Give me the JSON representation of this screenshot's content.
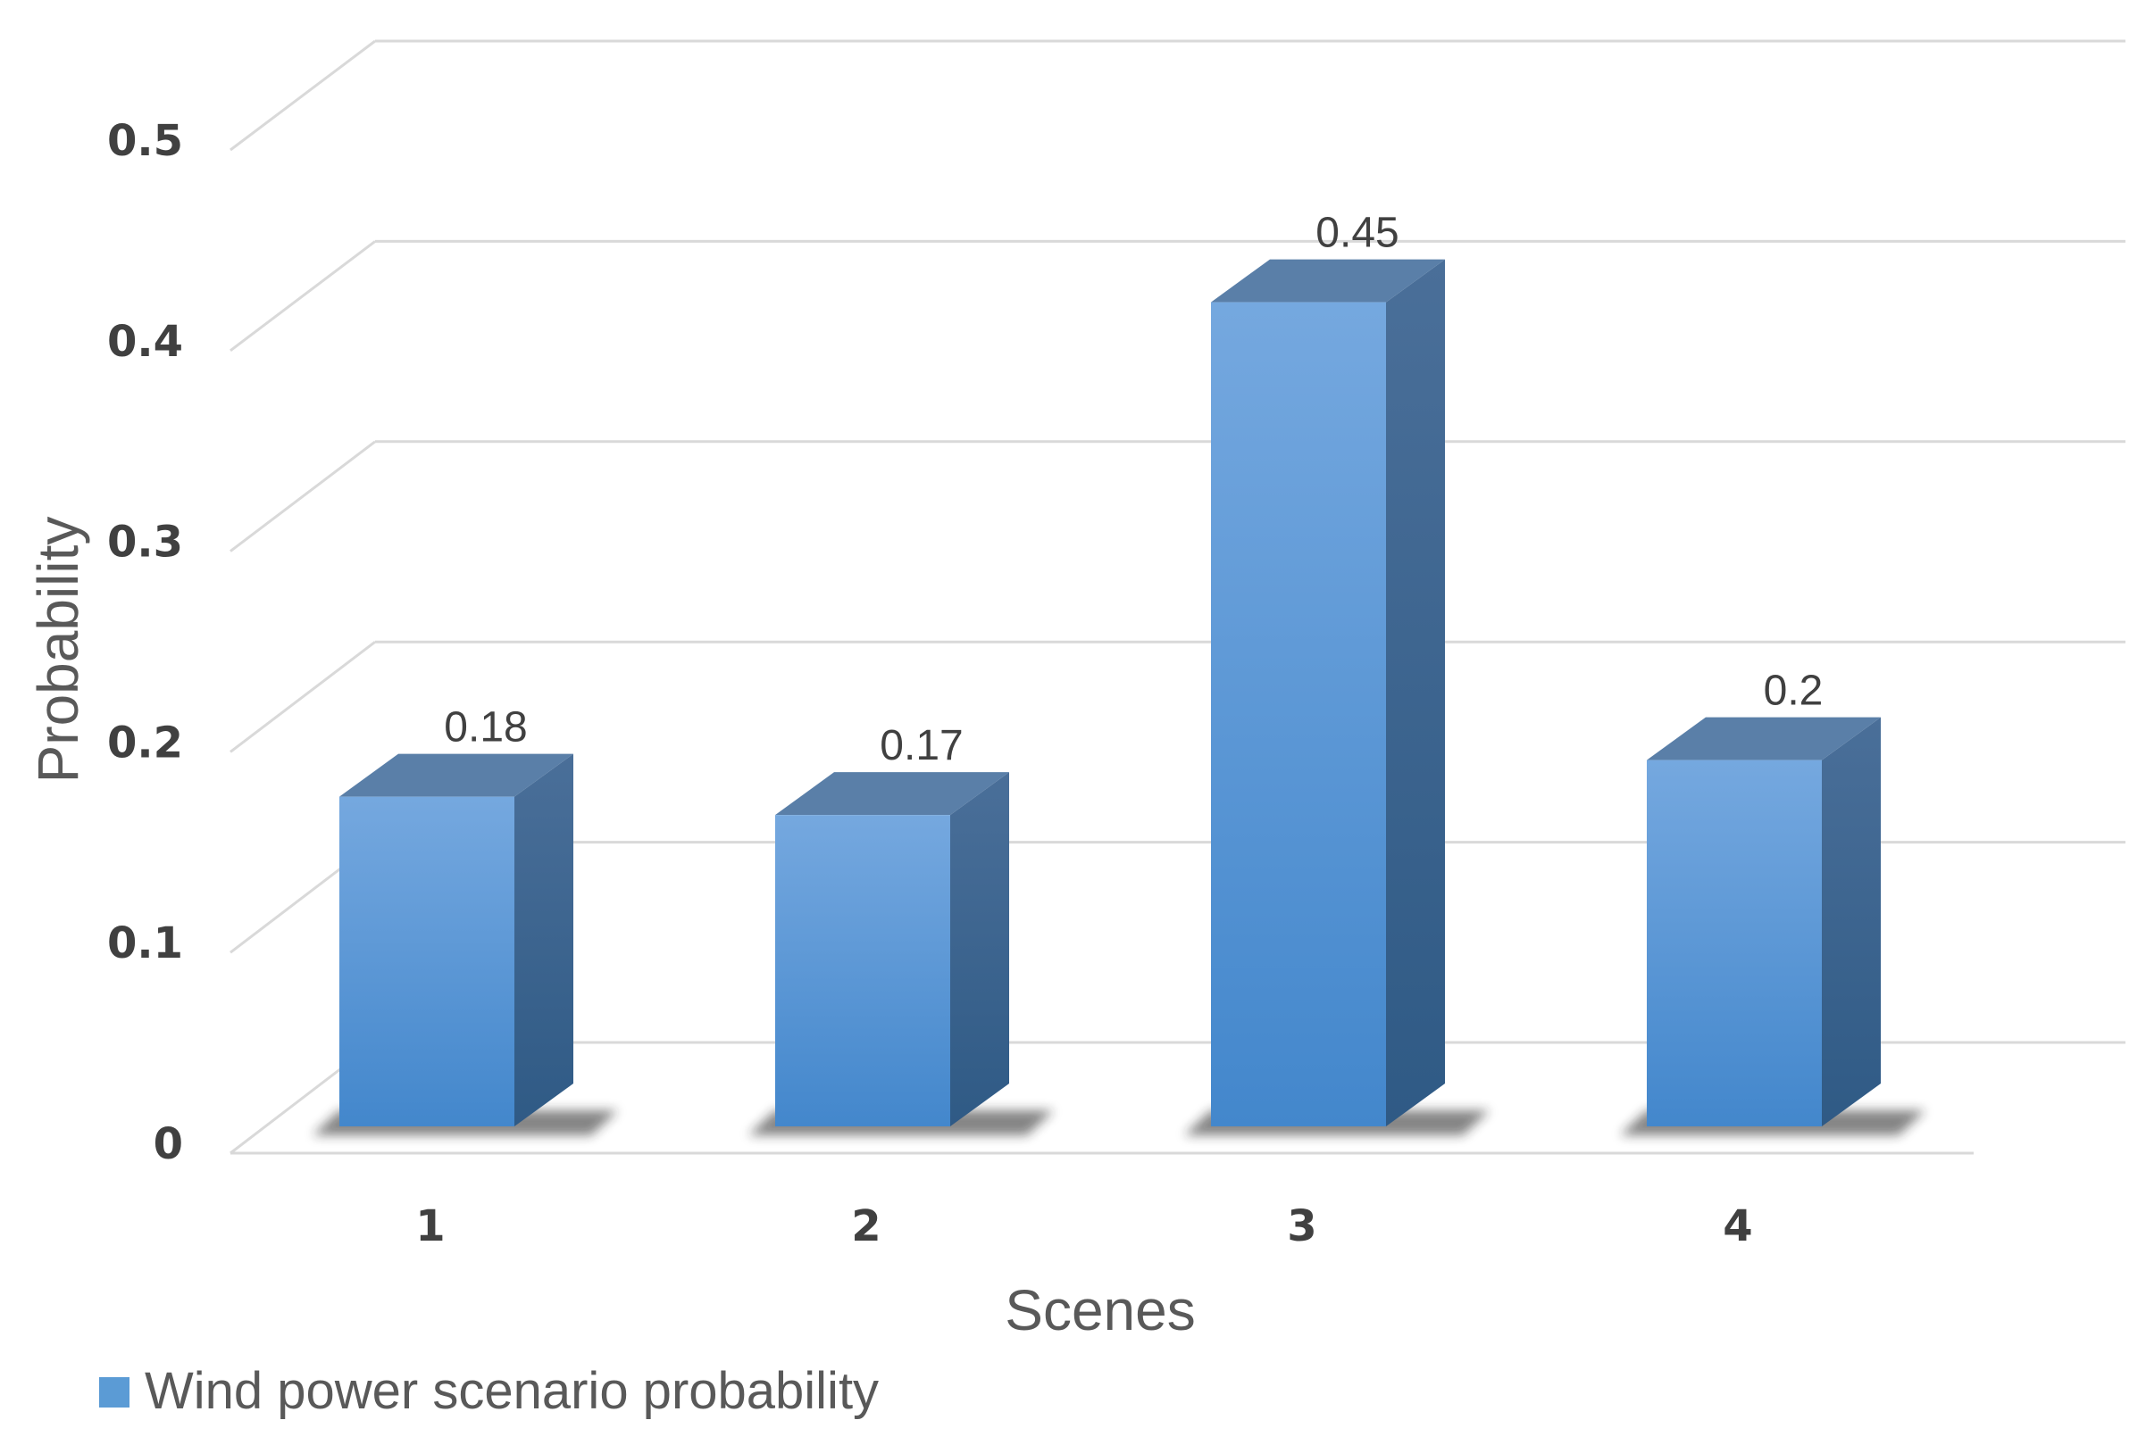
{
  "chart_data": {
    "type": "bar",
    "style": "3d-column",
    "categories": [
      "1",
      "2",
      "3",
      "4"
    ],
    "series": [
      {
        "name": "Wind power scenario probability",
        "values": [
          0.18,
          0.17,
          0.45,
          0.2
        ]
      }
    ],
    "data_labels": [
      "0.18",
      "0.17",
      "0.45",
      "0.2"
    ],
    "xlabel": "Scenes",
    "ylabel": "Probability",
    "ylim": [
      0,
      0.5
    ],
    "yticks": [
      "0",
      "0.1",
      "0.2",
      "0.3",
      "0.4",
      "0.5"
    ],
    "grid": true,
    "legend_position": "bottom-left",
    "colors": {
      "bar_front": "#5b9bd5",
      "bar_top": "#5a7fa8",
      "bar_side": "#3d668f",
      "grid": "#d9d9d9"
    }
  }
}
